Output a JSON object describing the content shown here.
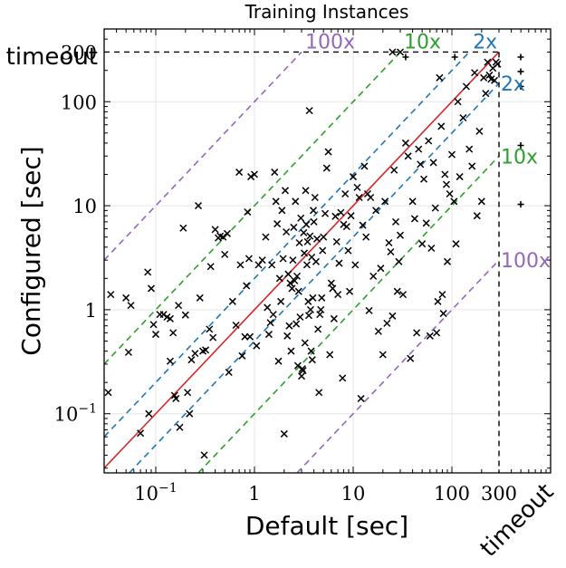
{
  "chart_data": {
    "type": "scatter",
    "title": "Training Instances",
    "xlabel": "Default [sec]",
    "ylabel": "Configured [sec]",
    "xscale": "log",
    "yscale": "log",
    "xlim": [
      0.03,
      1000
    ],
    "ylim": [
      0.027,
      500
    ],
    "grid": true,
    "cutoff_seconds": 300,
    "timeout_label": "timeout",
    "x_ticks": [
      {
        "value": 0.1,
        "label": "10",
        "exponent": "−1"
      },
      {
        "value": 1,
        "label": "1"
      },
      {
        "value": 10,
        "label": "10"
      },
      {
        "value": 100,
        "label": "100"
      },
      {
        "value": 300,
        "label": "300"
      }
    ],
    "y_ticks": [
      {
        "value": 0.1,
        "label": "10",
        "exponent": "−1"
      },
      {
        "value": 1,
        "label": "1"
      },
      {
        "value": 10,
        "label": "10"
      },
      {
        "value": 100,
        "label": "100"
      },
      {
        "value": 300,
        "label": "300"
      }
    ],
    "reference_lines": [
      {
        "factor": 1,
        "color": "#d62728",
        "style": "solid"
      },
      {
        "factor": 2,
        "label": "2x",
        "color": "#1f77b4",
        "style": "dashed"
      },
      {
        "factor": 10,
        "label": "10x",
        "color": "#2ca02c",
        "style": "dashed"
      },
      {
        "factor": 100,
        "label": "100x",
        "color": "#9467bd",
        "style": "dashed"
      }
    ],
    "series": [
      {
        "marker": "x",
        "color": "#000000",
        "points": [
          [
            0.035,
            1.4
          ],
          [
            0.033,
            0.16
          ],
          [
            0.05,
            1.3
          ],
          [
            0.053,
            0.39
          ],
          [
            0.056,
            1.1
          ],
          [
            0.07,
            0.065
          ],
          [
            0.083,
            2.3
          ],
          [
            0.085,
            0.1
          ],
          [
            0.09,
            1.6
          ],
          [
            0.095,
            0.72
          ],
          [
            0.1,
            0.58
          ],
          [
            0.12,
            0.9
          ],
          [
            0.11,
            0.9
          ],
          [
            0.13,
            0.85
          ],
          [
            0.14,
            0.82
          ],
          [
            0.14,
            0.32
          ],
          [
            0.15,
            0.6
          ],
          [
            0.155,
            0.15
          ],
          [
            0.16,
            0.14
          ],
          [
            0.17,
            1.1
          ],
          [
            0.175,
            0.074
          ],
          [
            0.19,
            6.1
          ],
          [
            0.2,
            0.89
          ],
          [
            0.21,
            0.16
          ],
          [
            0.22,
            0.1
          ],
          [
            0.23,
            0.33
          ],
          [
            0.25,
            0.38
          ],
          [
            0.27,
            10
          ],
          [
            0.28,
            1.3
          ],
          [
            0.3,
            0.4
          ],
          [
            0.31,
            0.04
          ],
          [
            0.32,
            0.41
          ],
          [
            0.35,
            0.65
          ],
          [
            0.36,
            2.6
          ],
          [
            0.38,
            0.54
          ],
          [
            0.4,
            5.9
          ],
          [
            0.43,
            4.9
          ],
          [
            0.45,
            5.1
          ],
          [
            0.48,
            5.0
          ],
          [
            0.5,
            3.4
          ],
          [
            0.53,
            5.4
          ],
          [
            0.55,
            0.25
          ],
          [
            0.6,
            1.2
          ],
          [
            0.65,
            0.71
          ],
          [
            0.7,
            21
          ],
          [
            0.72,
            2.7
          ],
          [
            0.75,
            0.36
          ],
          [
            0.8,
            0.55
          ],
          [
            0.83,
            1.7
          ],
          [
            0.85,
            8.7
          ],
          [
            0.88,
            3.1
          ],
          [
            0.9,
            0.55
          ],
          [
            0.92,
            19
          ],
          [
            1.0,
            20
          ],
          [
            1.05,
            0.45
          ],
          [
            1.1,
            2.7
          ],
          [
            1.2,
            3.0
          ],
          [
            1.3,
            5.0
          ],
          [
            1.35,
            1.05
          ],
          [
            1.4,
            0.58
          ],
          [
            1.45,
            0.75
          ],
          [
            1.5,
            2.7
          ],
          [
            1.55,
            0.9
          ],
          [
            1.6,
            21
          ],
          [
            1.65,
            11
          ],
          [
            1.7,
            6.7
          ],
          [
            1.75,
            0.32
          ],
          [
            1.8,
            2.0
          ],
          [
            1.85,
            1.2
          ],
          [
            1.9,
            9.0
          ],
          [
            1.95,
            3.1
          ],
          [
            2.0,
            0.064
          ],
          [
            2.05,
            14
          ],
          [
            2.1,
            5.6
          ],
          [
            2.15,
            0.56
          ],
          [
            2.2,
            2.2
          ],
          [
            2.25,
            0.7
          ],
          [
            2.3,
            1.8
          ],
          [
            2.35,
            0.4
          ],
          [
            2.4,
            1.6
          ],
          [
            2.45,
            3.0
          ],
          [
            2.5,
            6.2
          ],
          [
            2.55,
            1.9
          ],
          [
            2.6,
            11
          ],
          [
            2.65,
            0.73
          ],
          [
            2.7,
            2.1
          ],
          [
            2.75,
            0.29
          ],
          [
            2.8,
            1.5
          ],
          [
            2.85,
            4.4
          ],
          [
            2.9,
            0.85
          ],
          [
            2.95,
            7.6
          ],
          [
            3.0,
            0.23
          ],
          [
            3.05,
            0.27
          ],
          [
            3.1,
            0.26
          ],
          [
            3.15,
            5.5
          ],
          [
            3.2,
            3.5
          ],
          [
            3.25,
            0.48
          ],
          [
            3.3,
            14
          ],
          [
            3.35,
            6.6
          ],
          [
            3.4,
            2.7
          ],
          [
            3.45,
            4.5
          ],
          [
            3.5,
            1.2
          ],
          [
            3.55,
            0.88
          ],
          [
            3.6,
            82
          ],
          [
            3.65,
            5.1
          ],
          [
            3.7,
            1.0
          ],
          [
            3.75,
            0.4
          ],
          [
            3.8,
            3.2
          ],
          [
            3.85,
            0.33
          ],
          [
            3.9,
            1.3
          ],
          [
            3.95,
            9.0
          ],
          [
            4.0,
            7.0
          ],
          [
            4.1,
            12
          ],
          [
            4.2,
            2.9
          ],
          [
            4.3,
            4.8
          ],
          [
            4.4,
            0.65
          ],
          [
            4.5,
            0.16
          ],
          [
            4.6,
            0.9
          ],
          [
            4.7,
            1.0
          ],
          [
            4.8,
            1.3
          ],
          [
            4.9,
            3.7
          ],
          [
            5.0,
            5.0
          ],
          [
            5.2,
            8.4
          ],
          [
            5.4,
            23
          ],
          [
            5.6,
            33
          ],
          [
            5.8,
            0.37
          ],
          [
            6.0,
            1.8
          ],
          [
            6.2,
            1.6
          ],
          [
            6.4,
            0.82
          ],
          [
            6.6,
            7.9
          ],
          [
            6.8,
            4.5
          ],
          [
            7.0,
            1.4
          ],
          [
            7.2,
            2.8
          ],
          [
            7.5,
            8.6
          ],
          [
            7.8,
            0.22
          ],
          [
            8.0,
            6.6
          ],
          [
            8.3,
            13
          ],
          [
            8.6,
            6.3
          ],
          [
            8.9,
            3.7
          ],
          [
            9.2,
            1.5
          ],
          [
            9.5,
            8.0
          ],
          [
            10,
            19
          ],
          [
            10.5,
            2.7
          ],
          [
            11,
            15
          ],
          [
            11.5,
            12
          ],
          [
            12,
            0.14
          ],
          [
            12.5,
            6.5
          ],
          [
            13,
            24
          ],
          [
            13.5,
            5.0
          ],
          [
            14,
            13
          ],
          [
            14.5,
            0.98
          ],
          [
            15,
            12
          ],
          [
            16,
            2.1
          ],
          [
            17,
            9.0
          ],
          [
            18,
            0.62
          ],
          [
            19,
            2.5
          ],
          [
            20,
            0.37
          ],
          [
            21,
            11
          ],
          [
            22,
            0.74
          ],
          [
            23,
            4.4
          ],
          [
            24,
            3.6
          ],
          [
            25,
            0.87
          ],
          [
            26,
            22
          ],
          [
            27,
            7.0
          ],
          [
            28,
            1.5
          ],
          [
            29,
            2.9
          ],
          [
            30,
            5.2
          ],
          [
            32,
            1.4
          ],
          [
            34,
            40
          ],
          [
            36,
            30
          ],
          [
            38,
            0.34
          ],
          [
            40,
            11
          ],
          [
            42,
            7.5
          ],
          [
            44,
            0.6
          ],
          [
            46,
            35
          ],
          [
            48,
            25
          ],
          [
            50,
            4.3
          ],
          [
            52,
            18
          ],
          [
            55,
            6.8
          ],
          [
            58,
            42
          ],
          [
            60,
            0.56
          ],
          [
            62,
            3.9
          ],
          [
            65,
            26
          ],
          [
            68,
            9.5
          ],
          [
            70,
            0.6
          ],
          [
            72,
            1.2
          ],
          [
            75,
            170
          ],
          [
            78,
            58
          ],
          [
            80,
            1.4
          ],
          [
            82,
            0.92
          ],
          [
            85,
            20
          ],
          [
            88,
            16
          ],
          [
            90,
            2.9
          ],
          [
            95,
            13
          ],
          [
            100,
            31
          ],
          [
            105,
            11
          ],
          [
            110,
            4.3
          ],
          [
            115,
            100
          ],
          [
            120,
            19
          ],
          [
            130,
            70
          ],
          [
            140,
            140
          ],
          [
            150,
            35
          ],
          [
            160,
            24
          ],
          [
            170,
            190
          ],
          [
            180,
            8.0
          ],
          [
            190,
            52
          ],
          [
            200,
            11
          ],
          [
            210,
            170
          ],
          [
            220,
            120
          ],
          [
            230,
            240
          ],
          [
            240,
            180
          ],
          [
            250,
            165
          ],
          [
            260,
            210
          ],
          [
            270,
            160
          ],
          [
            280,
            240
          ],
          [
            290,
            230
          ],
          [
            25,
            300
          ],
          [
            30,
            300
          ]
        ]
      }
    ],
    "timeout_points": [
      {
        "x": "timeout",
        "y": 10.3
      },
      {
        "x": "timeout",
        "y": 38
      },
      {
        "x": "timeout",
        "y": 140
      },
      {
        "x": "timeout",
        "y": 195
      },
      {
        "x": "timeout",
        "y": "timeout"
      },
      {
        "x": 34,
        "y": "timeout"
      },
      {
        "x": 107,
        "y": "timeout"
      }
    ]
  }
}
